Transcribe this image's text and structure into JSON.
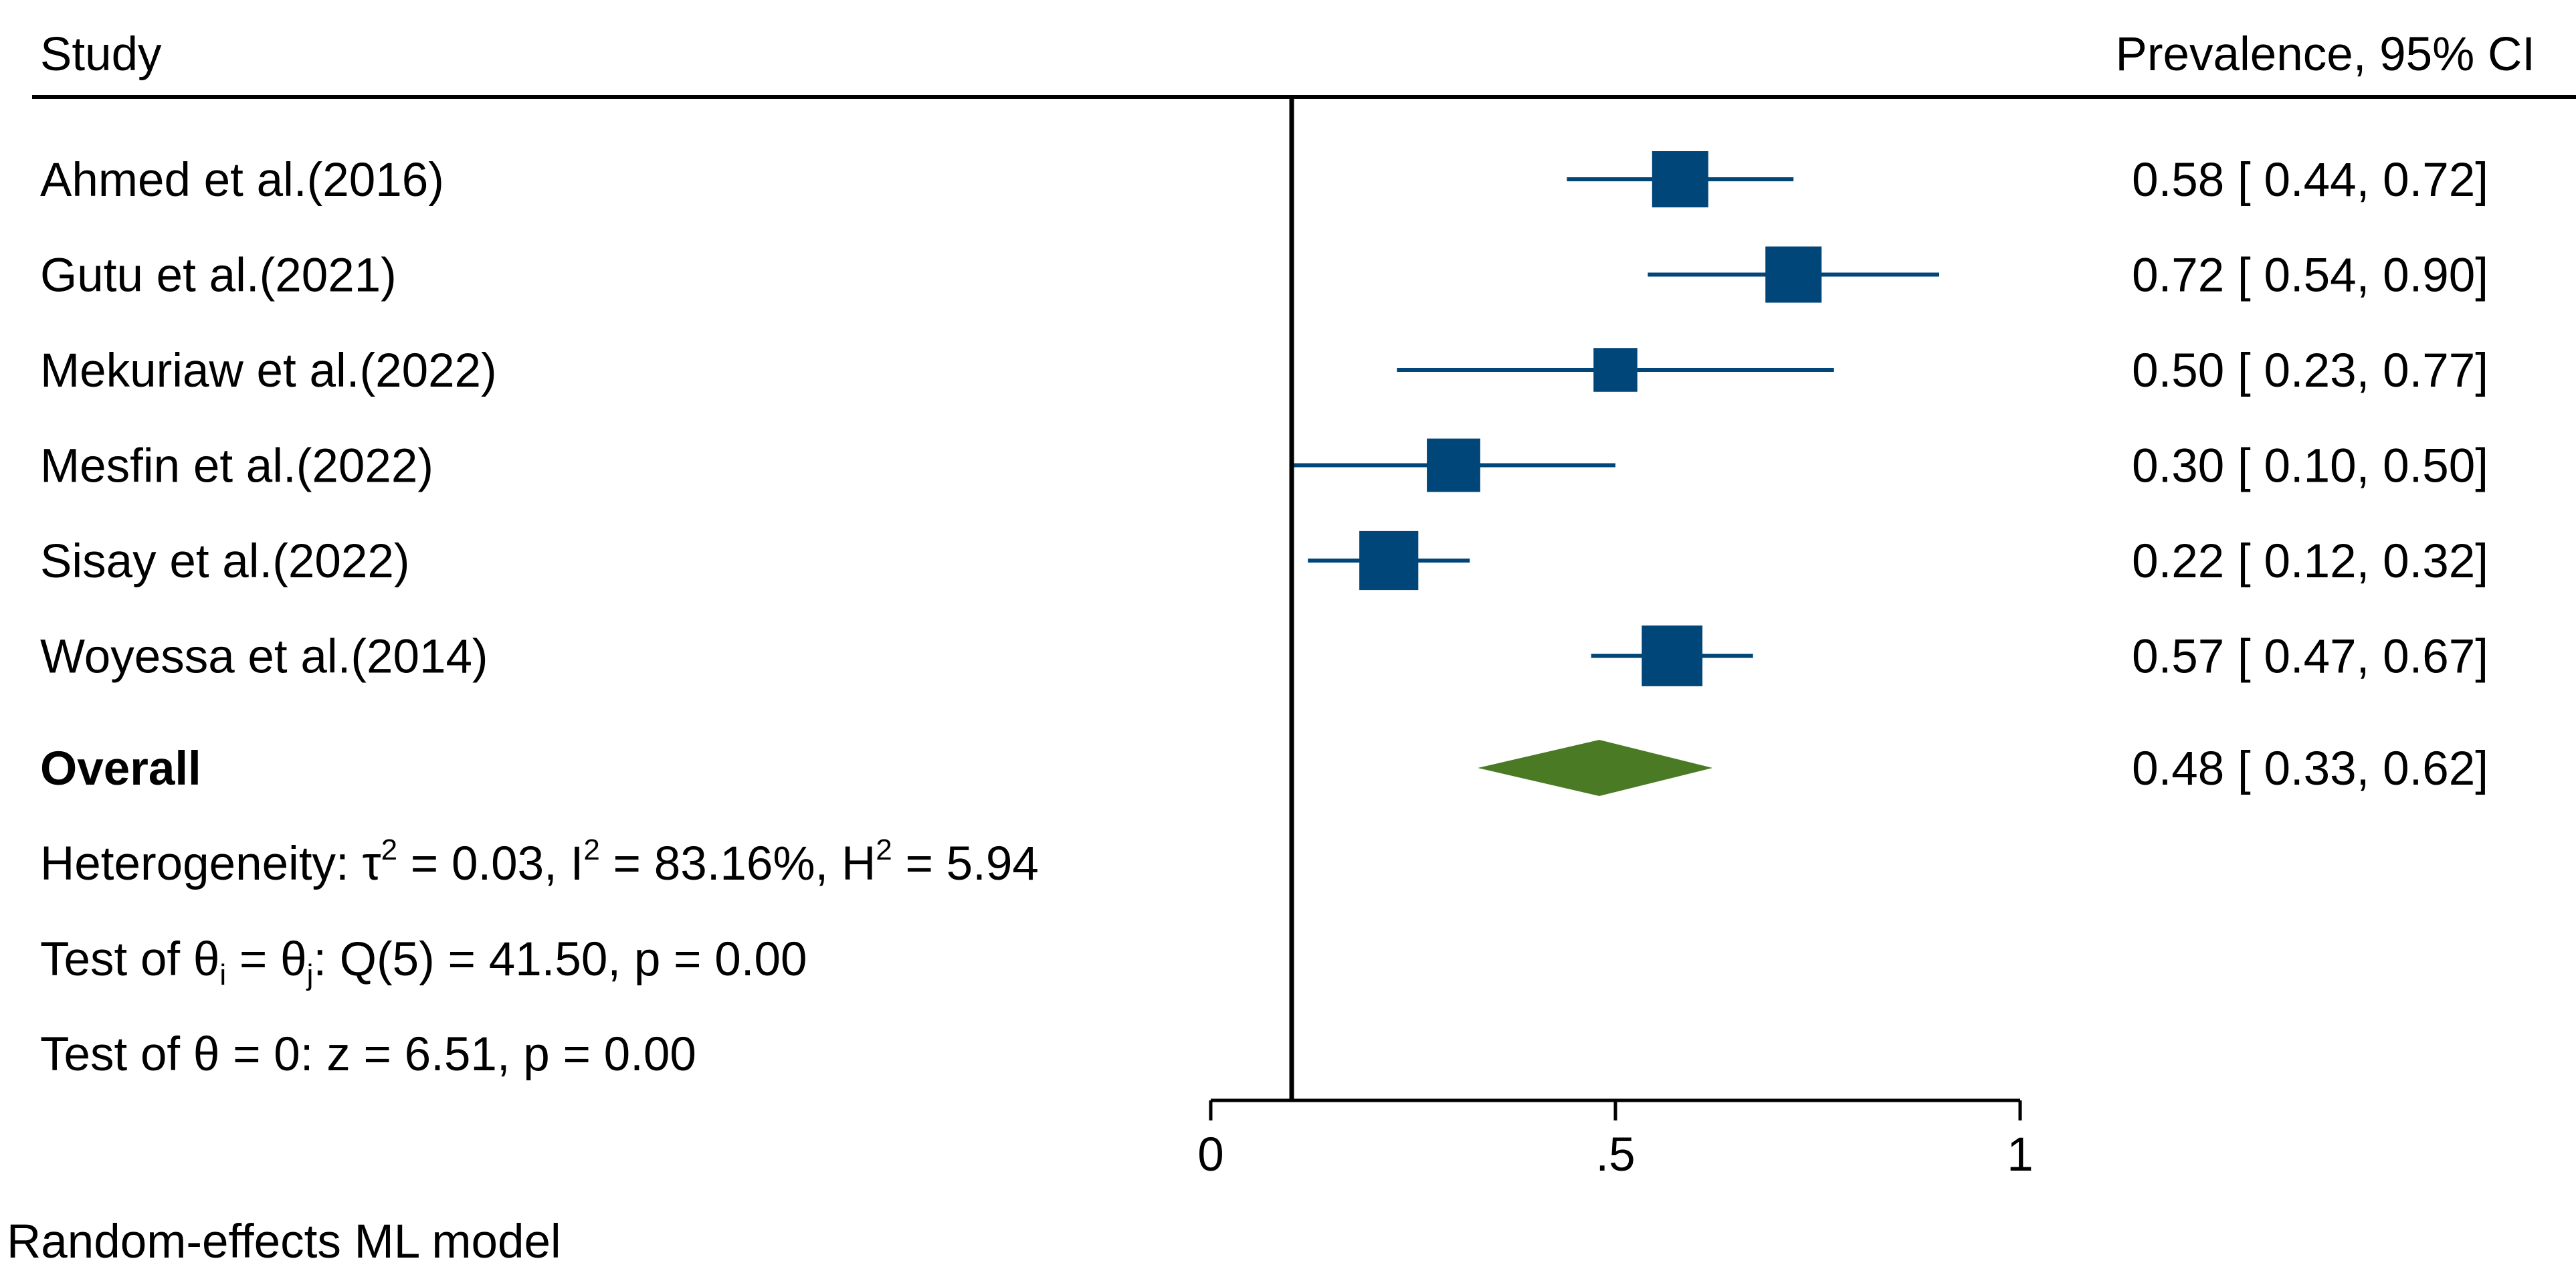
{
  "header": {
    "study_label": "Study",
    "effect_label": "Prevalence,  95% CI"
  },
  "colors": {
    "study_marker": "#004678",
    "overall_diamond": "#4b7a25",
    "axis": "#000000"
  },
  "overall": {
    "label": "Overall",
    "ci_text": "0.48 [ 0.33,  0.62]"
  },
  "stats": {
    "heterogeneity": {
      "prefix": "Heterogeneity: τ",
      "tau_exp": "2",
      "mid1": " = 0.03, I",
      "i_exp": "2",
      "mid2": " = 83.16%, H",
      "h_exp": "2",
      "suffix": " = 5.94"
    },
    "test_thetas": {
      "prefix": "Test of θ",
      "sub_i": "i",
      "mid": " = θ",
      "sub_j": "j",
      "suffix": ": Q(5) = 41.50, p = 0.00"
    },
    "test_zero": "Test of θ = 0: z = 6.51, p = 0.00"
  },
  "footnote": "Random-effects ML model",
  "chart_data": {
    "type": "forest",
    "xlim": [
      0,
      1
    ],
    "ticks": [
      {
        "value": 0,
        "label": "0"
      },
      {
        "value": 0.5,
        "label": ".5"
      },
      {
        "value": 1,
        "label": "1"
      }
    ],
    "reference_line": 0.1,
    "studies": [
      {
        "name": "Ahmed et al.(2016)",
        "estimate": 0.58,
        "lower": 0.44,
        "upper": 0.72,
        "ci_text": "0.58 [ 0.44,  0.72]",
        "weight": 1.0
      },
      {
        "name": "Gutu et al.(2021)",
        "estimate": 0.72,
        "lower": 0.54,
        "upper": 0.9,
        "ci_text": "0.72 [ 0.54,  0.90]",
        "weight": 1.0
      },
      {
        "name": "Mekuriaw et al.(2022)",
        "estimate": 0.5,
        "lower": 0.23,
        "upper": 0.77,
        "ci_text": "0.50 [ 0.23,  0.77]",
        "weight": 0.78
      },
      {
        "name": "Mesfin et al.(2022)",
        "estimate": 0.3,
        "lower": 0.1,
        "upper": 0.5,
        "ci_text": "0.30 [ 0.10,  0.50]",
        "weight": 0.95
      },
      {
        "name": "Sisay et al.(2022)",
        "estimate": 0.22,
        "lower": 0.12,
        "upper": 0.32,
        "ci_text": "0.22 [ 0.12,  0.32]",
        "weight": 1.05
      },
      {
        "name": "Woyessa et al.(2014)",
        "estimate": 0.57,
        "lower": 0.47,
        "upper": 0.67,
        "ci_text": "0.57 [ 0.47,  0.67]",
        "weight": 1.08
      }
    ],
    "overall": {
      "estimate": 0.48,
      "lower": 0.33,
      "upper": 0.62
    }
  }
}
